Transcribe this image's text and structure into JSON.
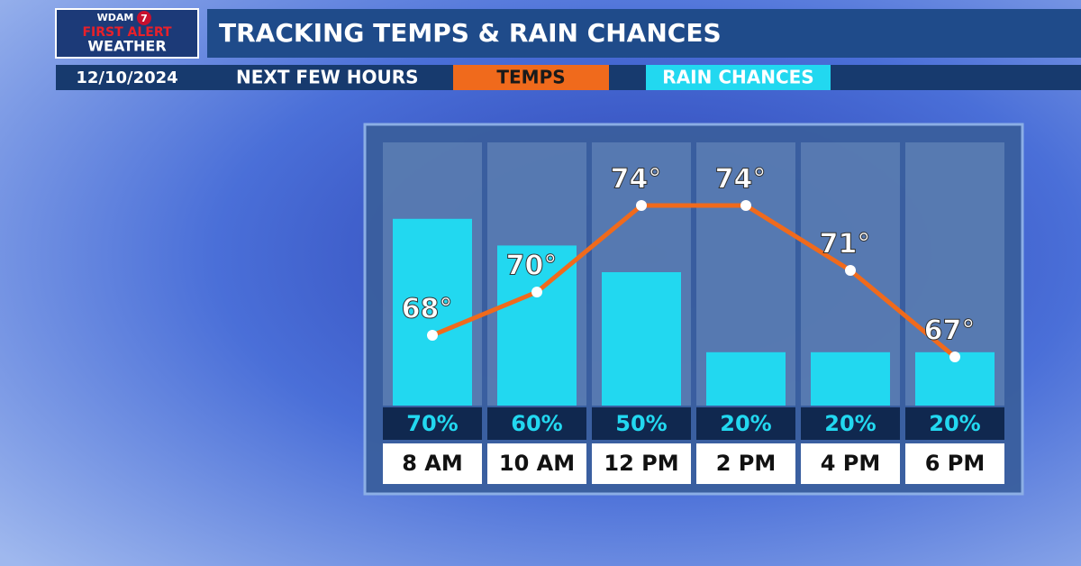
{
  "header": {
    "station": "WDAM",
    "channel": "7",
    "brand_line1": "FIRST ALERT",
    "brand_line2": "WEATHER",
    "title": "TRACKING TEMPS & RAIN CHANCES",
    "date": "12/10/2024",
    "period": "NEXT FEW HOURS"
  },
  "chart_data": {
    "type": "bar-line",
    "categories": [
      "8 AM",
      "10 AM",
      "12 PM",
      "2 PM",
      "4 PM",
      "6 PM"
    ],
    "series": [
      {
        "name": "TEMPS",
        "color": "#f06a1c",
        "values": [
          68,
          70,
          74,
          74,
          71,
          67
        ],
        "value_labels": [
          "68°",
          "70°",
          "74°",
          "74°",
          "71°",
          "67°"
        ]
      },
      {
        "name": "RAIN CHANCES",
        "color": "#22d8f0",
        "values": [
          70,
          60,
          50,
          20,
          20,
          20
        ],
        "value_labels": [
          "70%",
          "60%",
          "50%",
          "20%",
          "20%",
          "20%"
        ]
      }
    ]
  }
}
